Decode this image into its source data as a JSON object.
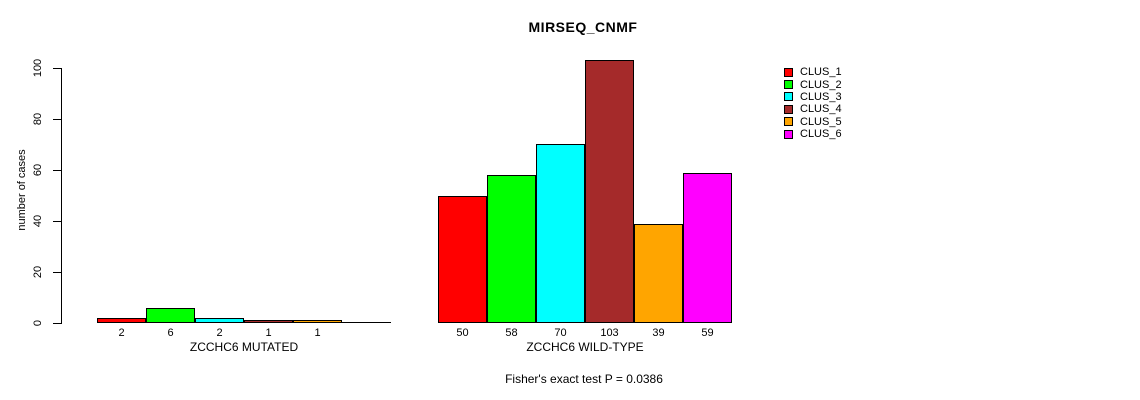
{
  "chart_data": {
    "type": "bar",
    "title": "MIRSEQ_CNMF",
    "ylabel": "number of cases",
    "xlabel": "",
    "ylim": [
      0,
      103
    ],
    "yticks": [
      0,
      20,
      40,
      60,
      80,
      100
    ],
    "grid": false,
    "legend_position": "right",
    "bar_value_labels": true,
    "categories": [
      "ZCCHC6 MUTATED",
      "ZCCHC6 WILD-TYPE"
    ],
    "series": [
      {
        "name": "CLUS_1",
        "color": "#ff0000",
        "values": [
          2,
          50
        ]
      },
      {
        "name": "CLUS_2",
        "color": "#00ff00",
        "values": [
          6,
          58
        ]
      },
      {
        "name": "CLUS_3",
        "color": "#00ffff",
        "values": [
          2,
          70
        ]
      },
      {
        "name": "CLUS_4",
        "color": "#a52a2a",
        "values": [
          1,
          103
        ]
      },
      {
        "name": "CLUS_5",
        "color": "#ffa500",
        "values": [
          1,
          39
        ]
      },
      {
        "name": "CLUS_6",
        "color": "#ff00ff",
        "values": [
          0,
          59
        ]
      }
    ],
    "annotation": "Fisher's exact test P = 0.0386"
  }
}
